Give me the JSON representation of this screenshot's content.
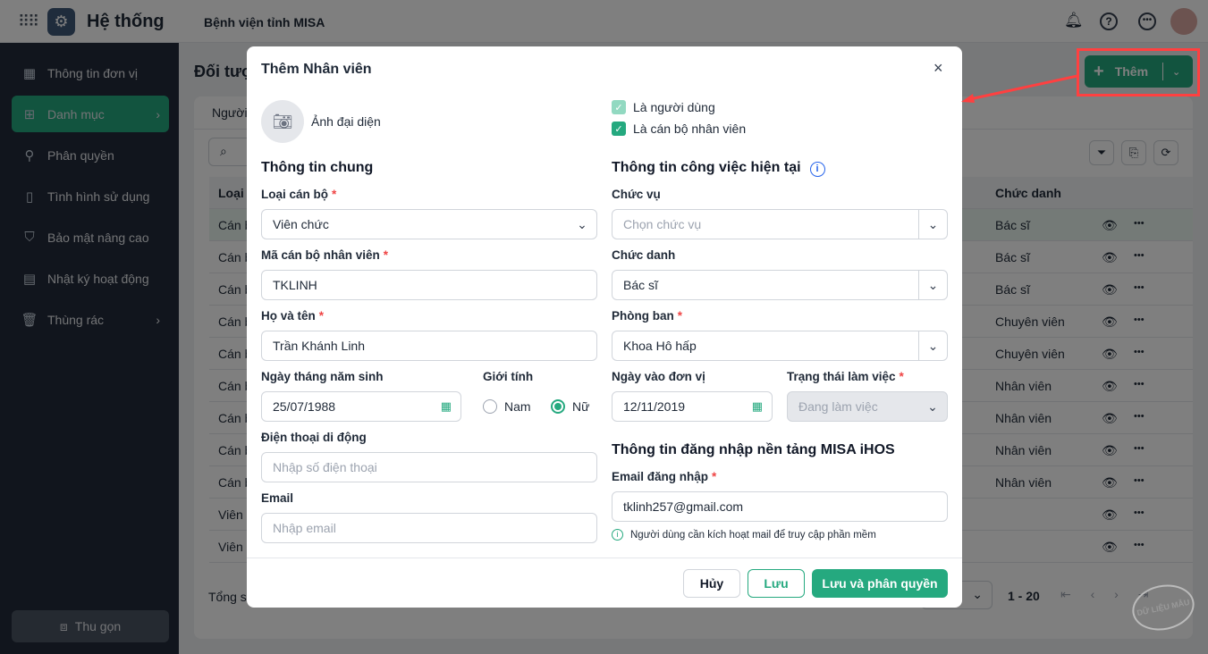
{
  "header": {
    "app_title": "Hệ thống",
    "org_name": "Bệnh viện tỉnh MISA"
  },
  "sidebar": {
    "items": [
      {
        "label": "Thông tin đơn vị",
        "icon": "building-icon"
      },
      {
        "label": "Danh mục",
        "icon": "grid-icon",
        "active": true
      },
      {
        "label": "Phân quyền",
        "icon": "hierarchy-icon"
      },
      {
        "label": "Tình hình sử dụng",
        "icon": "document-icon"
      },
      {
        "label": "Bảo mật nâng cao",
        "icon": "shield-icon"
      },
      {
        "label": "Nhật ký hoạt động",
        "icon": "clipboard-icon"
      },
      {
        "label": "Thùng rác",
        "icon": "trash-icon"
      }
    ],
    "collapse_label": "Thu gọn"
  },
  "page": {
    "title": "Đối tượng",
    "tab": "Người",
    "add_button": "Thêm",
    "accent": "#25a97f"
  },
  "table": {
    "headers": [
      "Loại",
      "Chức danh"
    ],
    "rows": [
      [
        "Cán bộ",
        "Bác sĩ"
      ],
      [
        "Cán bộ",
        "Bác sĩ"
      ],
      [
        "Cán bộ",
        "Bác sĩ"
      ],
      [
        "Cán bộ",
        "Chuyên viên"
      ],
      [
        "Cán bộ",
        "Chuyên viên"
      ],
      [
        "Cán bộ",
        "Nhân viên"
      ],
      [
        "Cán bộ",
        "Nhân viên"
      ],
      [
        "Cán bộ",
        "Nhân viên"
      ],
      [
        "Cán bộ",
        "Nhân viên"
      ],
      [
        "Viên chức",
        ""
      ],
      [
        "Viên chức",
        ""
      ]
    ],
    "total_label": "Tổng số",
    "range": "1 - 20"
  },
  "watermark": "DỮ LIỆU MẪU",
  "modal": {
    "title": "Thêm Nhân viên",
    "avatar_label": "Ảnh đại diện",
    "is_user": "Là người dùng",
    "is_staff": "Là cán bộ nhân viên",
    "general_section": "Thông tin chung",
    "staff_type": {
      "label": "Loại cán bộ",
      "value": "Viên chức"
    },
    "staff_code": {
      "label": "Mã cán bộ nhân viên",
      "value": "TKLINH"
    },
    "full_name": {
      "label": "Họ và tên",
      "value": "Trần Khánh Linh"
    },
    "dob": {
      "label": "Ngày tháng năm sinh",
      "value": "25/07/1988"
    },
    "gender": {
      "label": "Giới tính",
      "male": "Nam",
      "female": "Nữ",
      "selected": "Nữ"
    },
    "phone": {
      "label": "Điện thoại di động",
      "placeholder": "Nhập số điện thoại"
    },
    "email": {
      "label": "Email",
      "placeholder": "Nhập email"
    },
    "job_section": "Thông tin công việc hiện tại",
    "position": {
      "label": "Chức vụ",
      "placeholder": "Chọn chức vụ"
    },
    "title_field": {
      "label": "Chức danh",
      "value": "Bác sĩ"
    },
    "department": {
      "label": "Phòng ban",
      "value": "Khoa Hô hấp"
    },
    "join_date": {
      "label": "Ngày vào đơn vị",
      "value": "12/11/2019"
    },
    "work_status": {
      "label": "Trạng thái làm việc",
      "value": "Đang làm việc"
    },
    "login_section": "Thông tin đăng nhập nền tảng MISA iHOS",
    "login_email": {
      "label": "Email đăng nhập",
      "value": "tklinh257@gmail.com"
    },
    "hint": "Người dùng cần kích hoạt mail để truy cập phần mềm",
    "cancel": "Hủy",
    "save": "Lưu",
    "save_and_permit": "Lưu và phân quyền"
  }
}
